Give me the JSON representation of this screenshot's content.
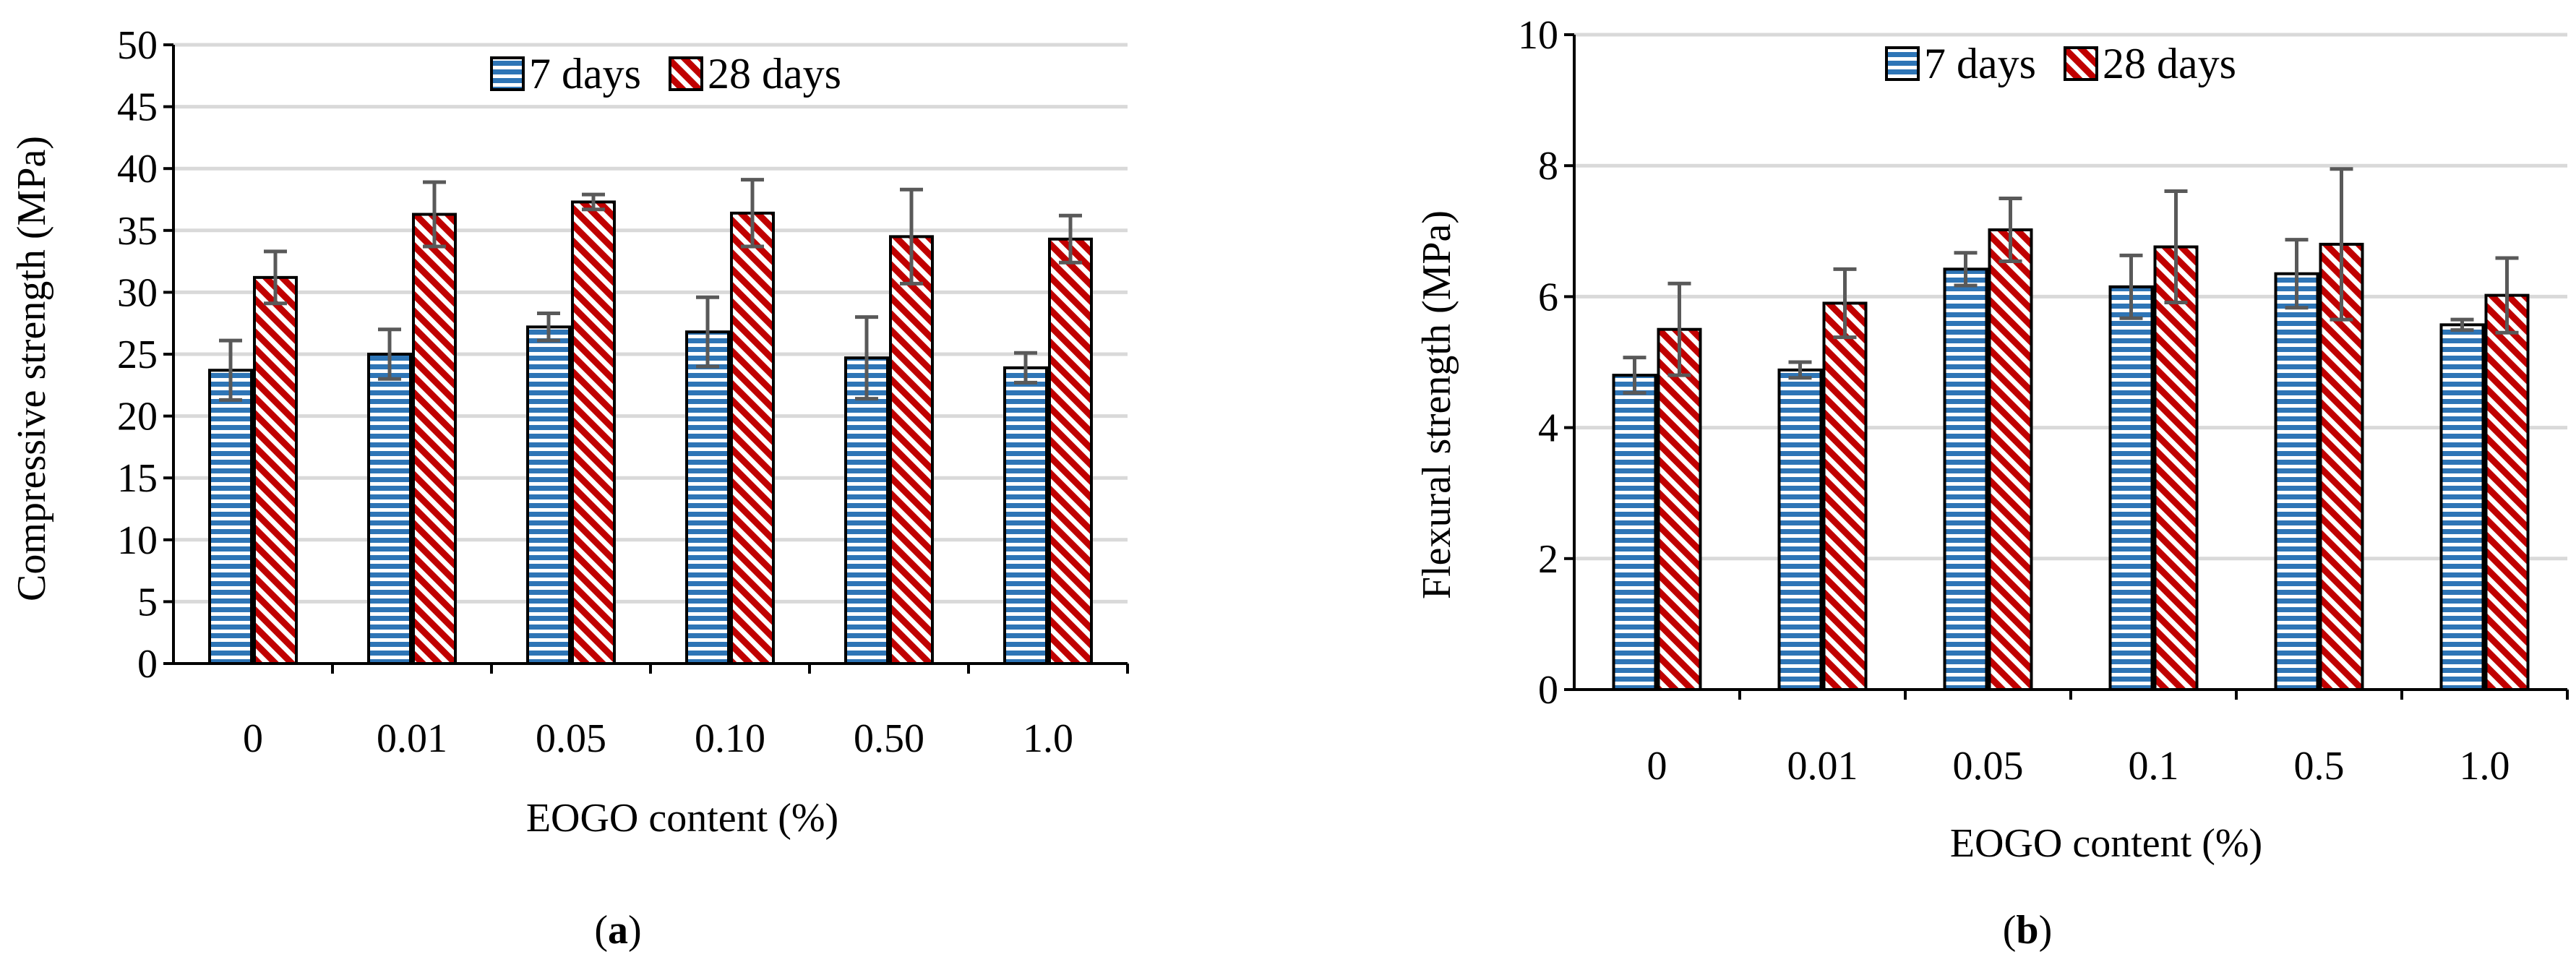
{
  "charts": [
    {
      "caption_label": "a",
      "chart_data": {
        "type": "bar",
        "title": "",
        "xlabel": "EOGO content (%)",
        "ylabel": "Compressive strength (MPa)",
        "ylim": [
          0,
          50
        ],
        "ytick_step": 5,
        "ytick_labels": [
          "0",
          "5",
          "10",
          "15",
          "20",
          "25",
          "30",
          "35",
          "40",
          "45",
          "50"
        ],
        "grid": true,
        "legend_position": "top-center",
        "categories": [
          "0",
          "0.01",
          "0.05",
          "0.10",
          "0.50",
          "1.0"
        ],
        "series": [
          {
            "name": "7 days",
            "pattern": "horizontal-stripes",
            "color": "#2E75B6",
            "values": [
              23.7,
              25.0,
              27.2,
              26.8,
              24.7,
              23.9
            ],
            "errors": [
              2.4,
              2.0,
              1.1,
              2.8,
              3.3,
              1.2
            ]
          },
          {
            "name": "28 days",
            "pattern": "diagonal-stripes",
            "color": "#C00000",
            "values": [
              31.2,
              36.3,
              37.3,
              36.4,
              34.5,
              34.3
            ],
            "errors": [
              2.1,
              2.6,
              0.6,
              2.7,
              3.8,
              1.9
            ]
          }
        ]
      }
    },
    {
      "caption_label": "b",
      "chart_data": {
        "type": "bar",
        "title": "",
        "xlabel": "EOGO content (%)",
        "ylabel": "Flexural strength (MPa)",
        "ylim": [
          0,
          10
        ],
        "ytick_step": 2,
        "ytick_labels": [
          "0",
          "2",
          "4",
          "6",
          "8",
          "10"
        ],
        "grid": true,
        "legend_position": "top-center",
        "categories": [
          "0",
          "0.01",
          "0.05",
          "0.1",
          "0.5",
          "1.0"
        ],
        "series": [
          {
            "name": "7 days",
            "pattern": "horizontal-stripes",
            "color": "#2E75B6",
            "values": [
              4.8,
              4.88,
              6.42,
              6.15,
              6.35,
              5.57
            ],
            "errors": [
              0.27,
              0.12,
              0.25,
              0.48,
              0.52,
              0.08
            ]
          },
          {
            "name": "28 days",
            "pattern": "diagonal-stripes",
            "color": "#C00000",
            "values": [
              5.5,
              5.9,
              7.02,
              6.76,
              6.8,
              6.02
            ],
            "errors": [
              0.7,
              0.52,
              0.48,
              0.85,
              1.15,
              0.57
            ]
          }
        ]
      }
    }
  ]
}
